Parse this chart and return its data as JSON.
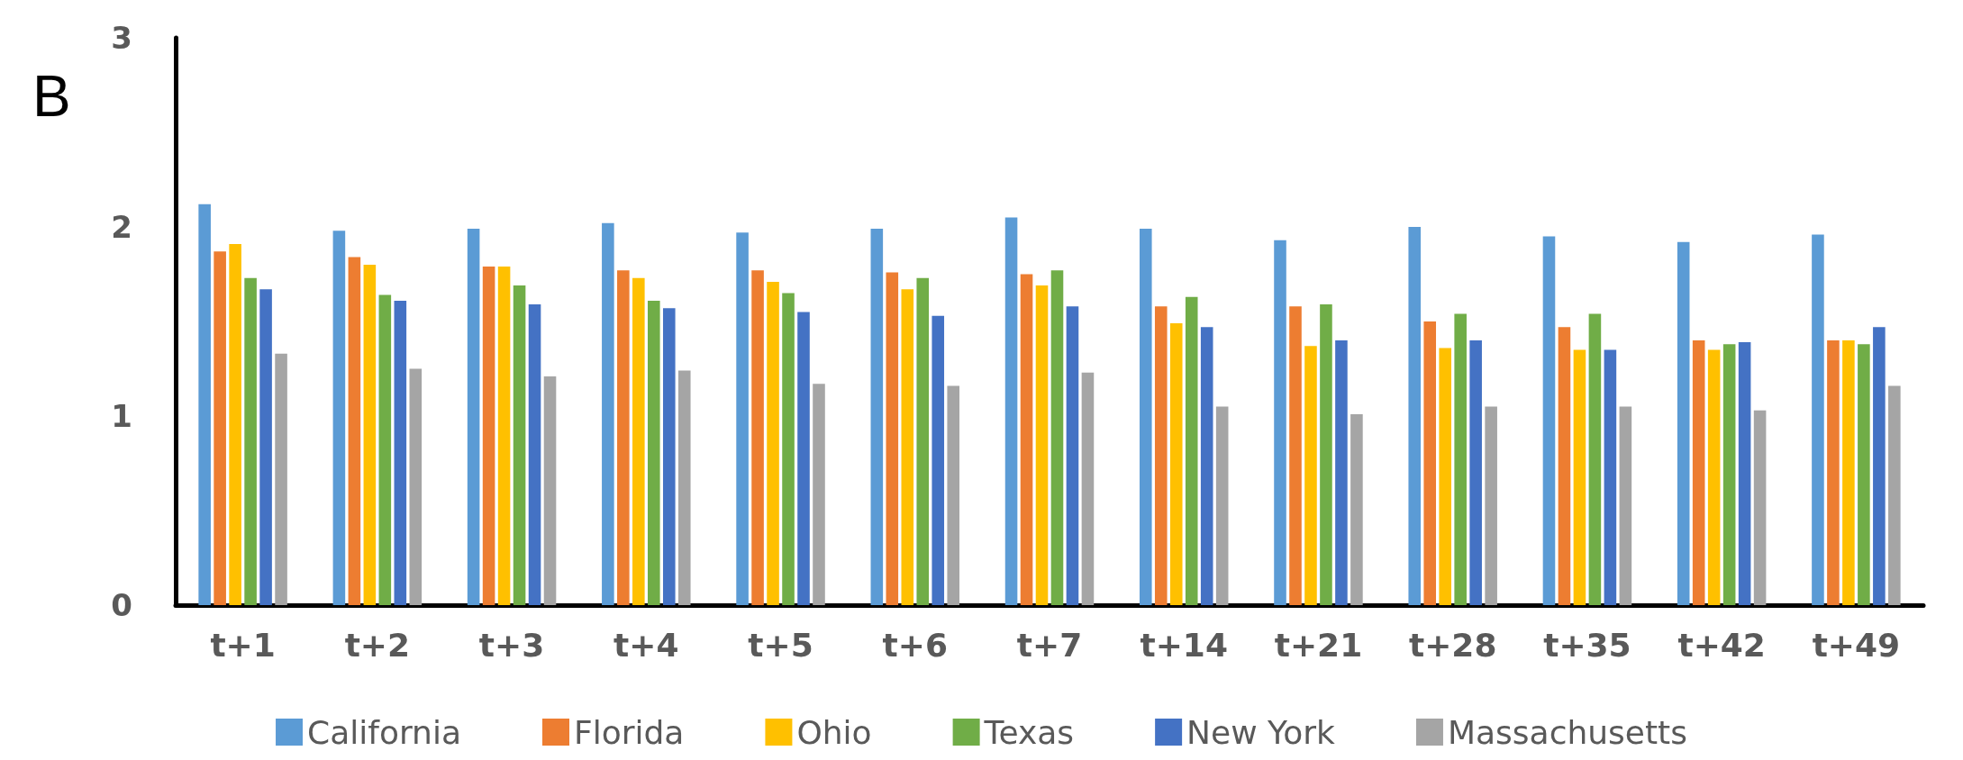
{
  "chart_data": {
    "type": "bar",
    "categories": [
      "t+1",
      "t+2",
      "t+3",
      "t+4",
      "t+5",
      "t+6",
      "t+7",
      "t+14",
      "t+21",
      "t+28",
      "t+35",
      "t+42",
      "t+49"
    ],
    "series": [
      {
        "name": "California",
        "color": "#5b9bd5",
        "values": [
          2.12,
          1.98,
          1.99,
          2.02,
          1.97,
          1.99,
          2.05,
          1.99,
          1.93,
          2.0,
          1.95,
          1.92,
          1.96
        ]
      },
      {
        "name": "Florida",
        "color": "#ed7d31",
        "values": [
          1.87,
          1.84,
          1.79,
          1.77,
          1.77,
          1.76,
          1.75,
          1.58,
          1.58,
          1.5,
          1.47,
          1.4,
          1.4
        ]
      },
      {
        "name": "Ohio",
        "color": "#ffc000",
        "values": [
          1.91,
          1.8,
          1.79,
          1.73,
          1.71,
          1.67,
          1.69,
          1.49,
          1.37,
          1.36,
          1.35,
          1.35,
          1.4
        ]
      },
      {
        "name": "Texas",
        "color": "#70ad47",
        "values": [
          1.73,
          1.64,
          1.69,
          1.61,
          1.65,
          1.73,
          1.77,
          1.63,
          1.59,
          1.54,
          1.54,
          1.38,
          1.38
        ]
      },
      {
        "name": "New York",
        "color": "#4472c4",
        "values": [
          1.67,
          1.61,
          1.59,
          1.57,
          1.55,
          1.53,
          1.58,
          1.47,
          1.4,
          1.4,
          1.35,
          1.39,
          1.47
        ]
      },
      {
        "name": "Massachusetts",
        "color": "#a5a5a5",
        "values": [
          1.33,
          1.25,
          1.21,
          1.24,
          1.17,
          1.16,
          1.23,
          1.05,
          1.01,
          1.05,
          1.05,
          1.03,
          1.16
        ]
      }
    ],
    "ylim": [
      0,
      3
    ],
    "yticks": [
      0,
      1,
      2,
      3
    ],
    "grid": false,
    "legend": "bottom",
    "annotations": [
      "B"
    ]
  }
}
